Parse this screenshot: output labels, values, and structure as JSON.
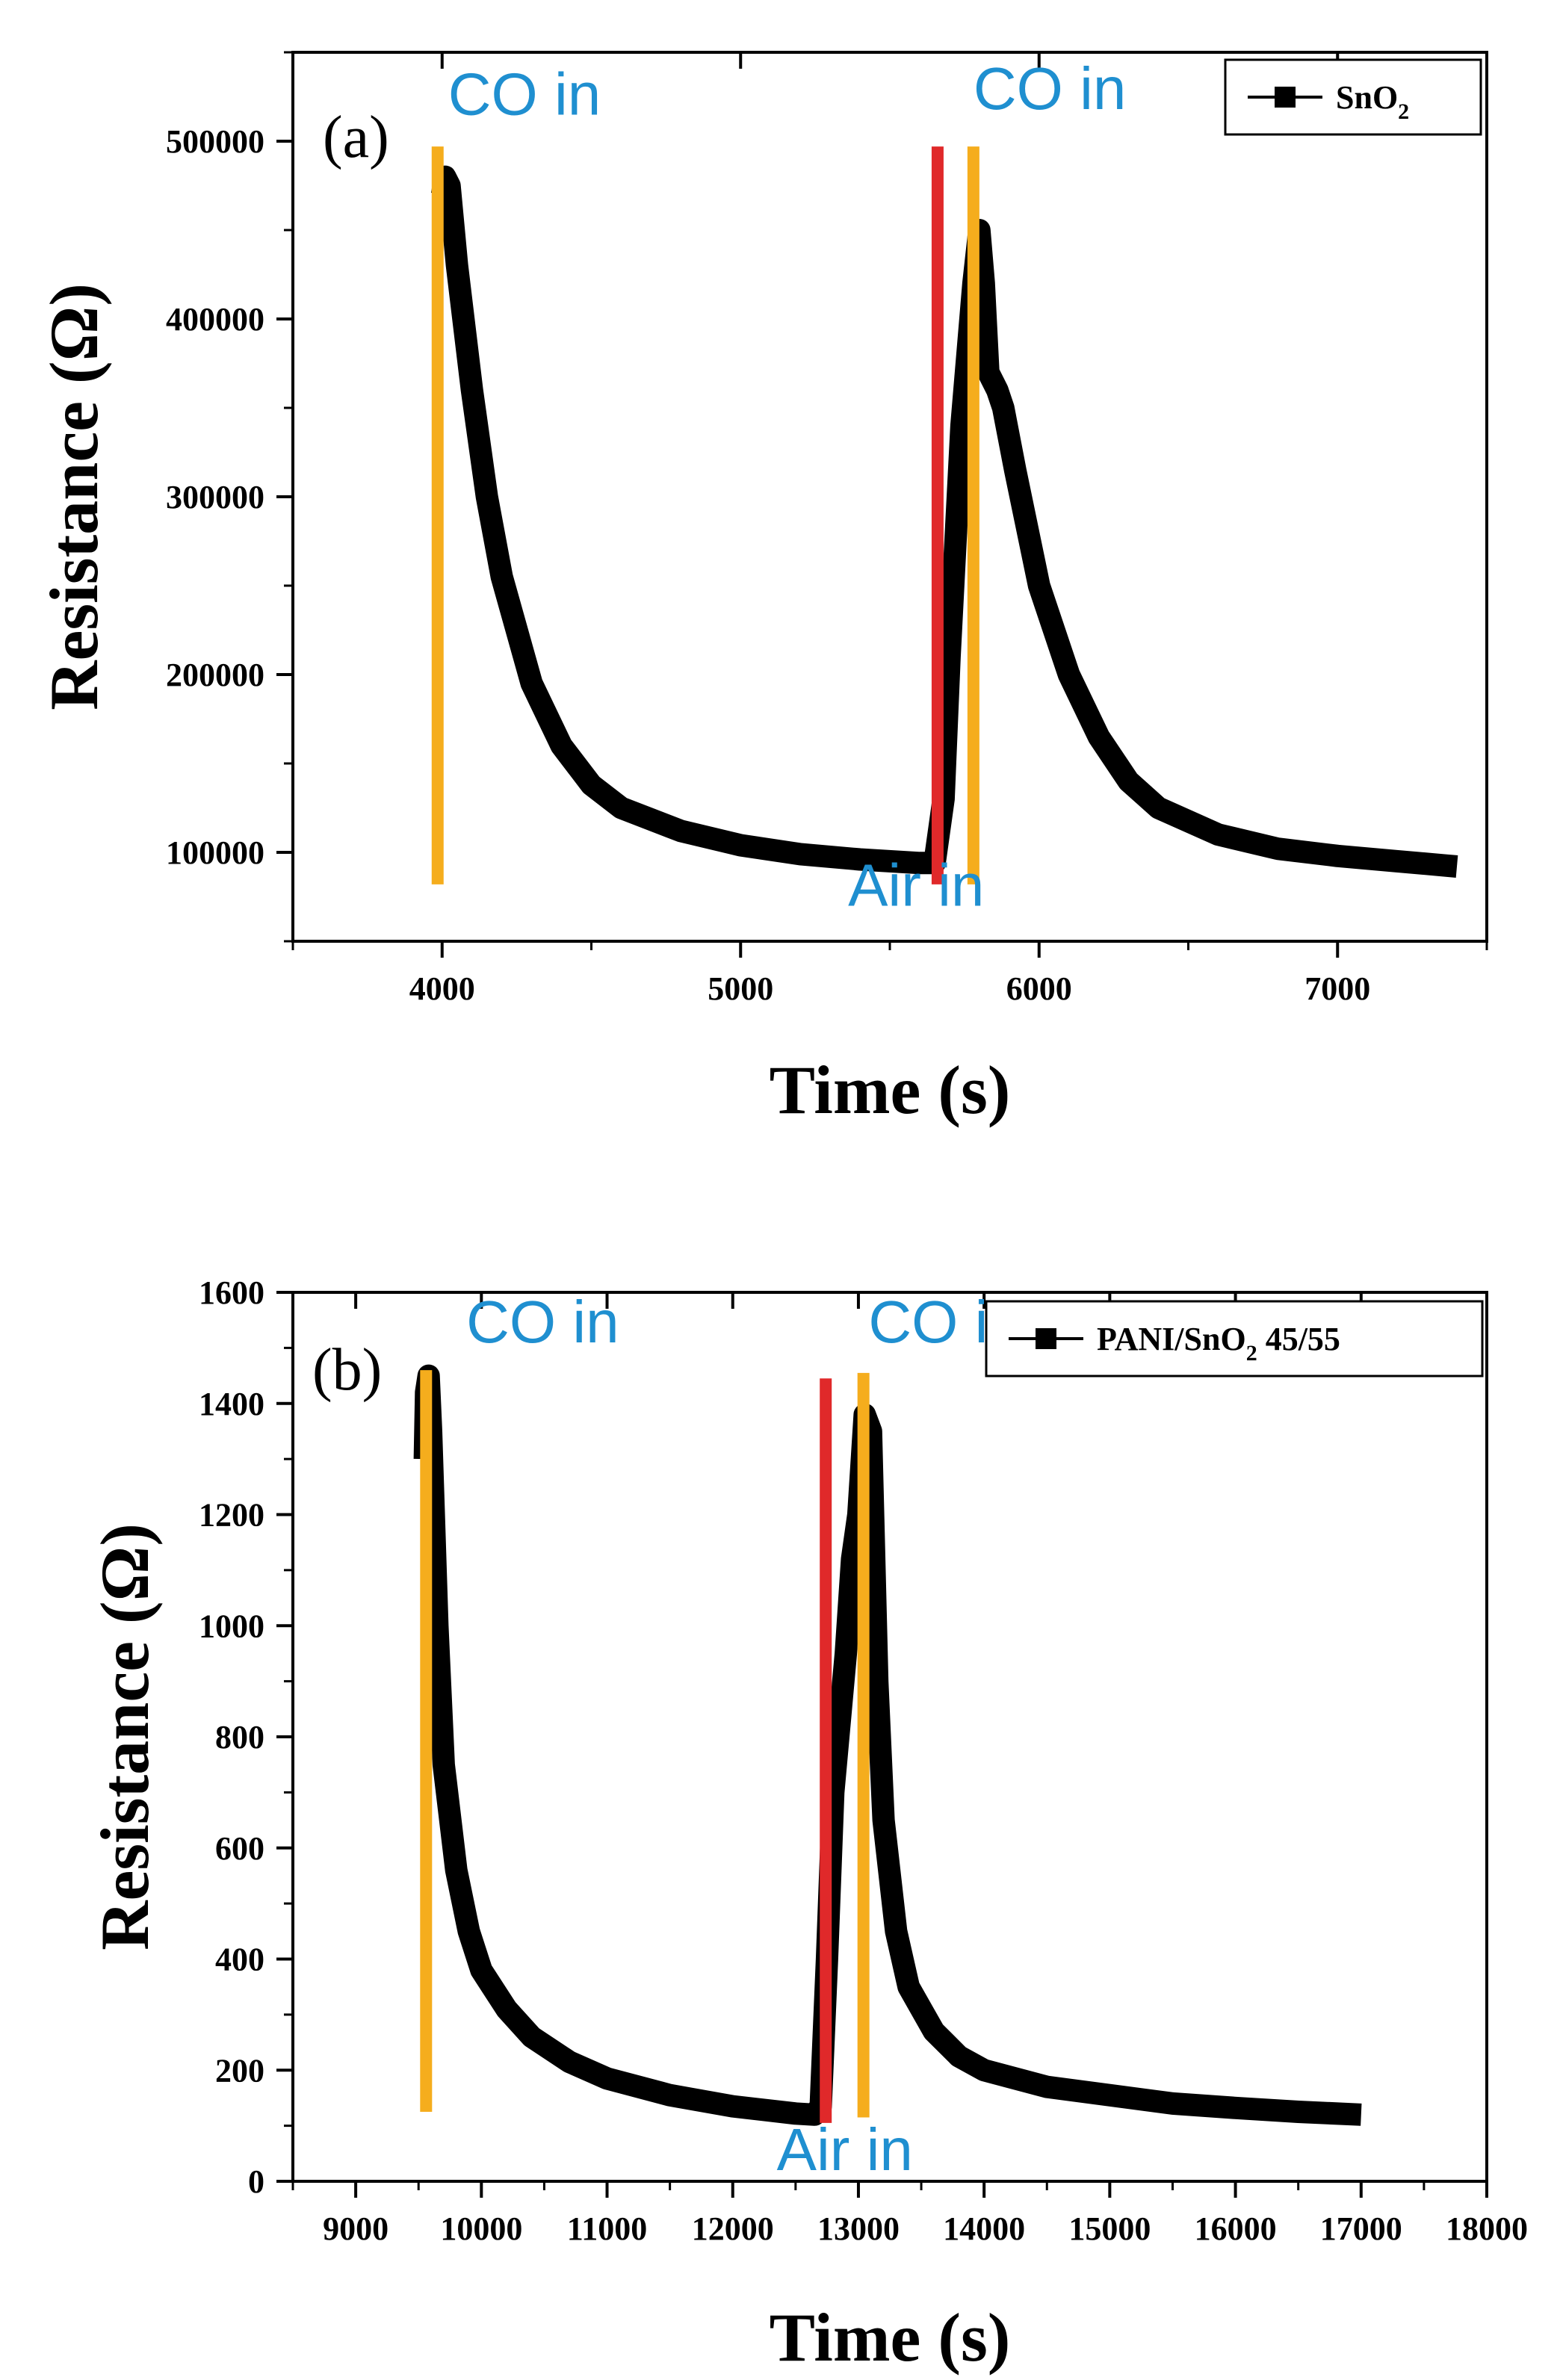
{
  "chart_data": [
    {
      "type": "line",
      "panel_label": "(a)",
      "xlabel": "Time (s)",
      "ylabel": "Resistance (Ω)",
      "xlim": [
        3500,
        7500
      ],
      "ylim": [
        50000,
        550000
      ],
      "xticks": [
        4000,
        5000,
        6000,
        7000
      ],
      "xtick_labels": [
        "4000",
        "5000",
        "6000",
        "7000"
      ],
      "yticks": [
        100000,
        200000,
        300000,
        400000,
        500000
      ],
      "ytick_labels": [
        "100000",
        "200000",
        "300000",
        "400000",
        "500000"
      ],
      "legend": {
        "name": "SnO",
        "subscript": "2",
        "placement": "top-right"
      },
      "series": [
        {
          "name": "SnO2",
          "x": [
            4000,
            4010,
            4025,
            4050,
            4100,
            4150,
            4200,
            4300,
            4400,
            4500,
            4600,
            4800,
            5000,
            5200,
            5400,
            5600,
            5650,
            5680,
            5700,
            5740,
            5780,
            5800,
            5815,
            5830,
            5860,
            5880,
            5920,
            6000,
            6100,
            6200,
            6300,
            6400,
            6600,
            6800,
            7000,
            7200,
            7400
          ],
          "y": [
            470000,
            480000,
            475000,
            430000,
            360000,
            300000,
            255000,
            195000,
            160000,
            138000,
            125000,
            112000,
            104000,
            99000,
            96000,
            94000,
            94000,
            130000,
            210000,
            340000,
            420000,
            450000,
            420000,
            370000,
            360000,
            350000,
            315000,
            250000,
            200000,
            165000,
            140000,
            125000,
            110000,
            102000,
            98000,
            95000,
            92000
          ]
        }
      ],
      "annotations": [
        {
          "text": "CO in",
          "x": 4020,
          "y": 515000
        },
        {
          "text": "CO in",
          "x": 5780,
          "y": 518000
        },
        {
          "text": "Air in",
          "x": 5360,
          "y": 70000
        }
      ],
      "markers": [
        {
          "x": 3985,
          "y_from": 82000,
          "y_to": 497000,
          "color": "#f5ad1d"
        },
        {
          "x": 5660,
          "y_from": 82000,
          "y_to": 497000,
          "color": "#e0292a"
        },
        {
          "x": 5780,
          "y_from": 82000,
          "y_to": 497000,
          "color": "#f5ad1d"
        }
      ]
    },
    {
      "type": "line",
      "panel_label": "(b)",
      "xlabel": "Time (s)",
      "ylabel": "Resistance (Ω)",
      "xlim": [
        8500,
        18000
      ],
      "ylim": [
        0,
        1600
      ],
      "xticks": [
        9000,
        10000,
        11000,
        12000,
        13000,
        14000,
        15000,
        16000,
        17000,
        18000
      ],
      "xtick_labels": [
        "9000",
        "10000",
        "11000",
        "12000",
        "13000",
        "14000",
        "15000",
        "16000",
        "17000",
        "18000"
      ],
      "yticks": [
        0,
        200,
        400,
        600,
        800,
        1000,
        1200,
        1400,
        1600
      ],
      "ytick_labels": [
        "0",
        "200",
        "400",
        "600",
        "800",
        "1000",
        "1200",
        "1400",
        "1600"
      ],
      "legend": {
        "name": "PANI/SnO",
        "subscript": "2",
        "suffix": " 45/55",
        "placement": "top-right"
      },
      "series": [
        {
          "name": "PANI/SnO2 45/55",
          "x": [
            9550,
            9560,
            9580,
            9600,
            9650,
            9700,
            9800,
            9900,
            10000,
            10200,
            10400,
            10700,
            11000,
            11500,
            12000,
            12500,
            12650,
            12700,
            12750,
            12800,
            12900,
            12950,
            13000,
            13050,
            13100,
            13150,
            13200,
            13300,
            13400,
            13600,
            13800,
            14000,
            14500,
            15000,
            15500,
            16000,
            16500,
            17000
          ],
          "y": [
            1300,
            1420,
            1450,
            1350,
            1000,
            750,
            560,
            450,
            380,
            310,
            260,
            215,
            185,
            155,
            135,
            122,
            120,
            135,
            400,
            700,
            950,
            1120,
            1200,
            1380,
            1350,
            900,
            650,
            450,
            350,
            270,
            225,
            200,
            170,
            155,
            140,
            132,
            125,
            120
          ]
        }
      ],
      "annotations": [
        {
          "text": "CO in",
          "x": 9880,
          "y": 1510
        },
        {
          "text": "CO in",
          "x": 13080,
          "y": 1510
        },
        {
          "text": "Air in",
          "x": 12350,
          "y": 20
        }
      ],
      "markers": [
        {
          "x": 9560,
          "y_from": 125,
          "y_to": 1460,
          "color": "#f5ad1d"
        },
        {
          "x": 12740,
          "y_from": 105,
          "y_to": 1445,
          "color": "#e0292a"
        },
        {
          "x": 13040,
          "y_from": 115,
          "y_to": 1455,
          "color": "#f5ad1d"
        }
      ]
    }
  ]
}
